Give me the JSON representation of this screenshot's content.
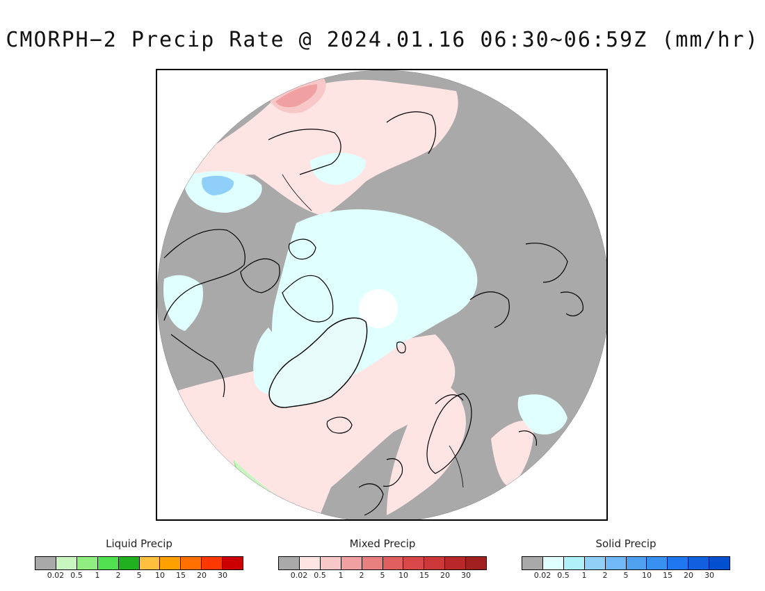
{
  "title": "CMORPH−2 Precip Rate @ 2024.01.16 06:30~06:59Z (mm/hr)",
  "legends": [
    {
      "id": "liquid",
      "title": "Liquid Precip",
      "colors": [
        "#a9a9a9",
        "#c8f5c0",
        "#90ee80",
        "#50e050",
        "#20b020",
        "#ffc040",
        "#ffa000",
        "#ff7000",
        "#ff3800",
        "#cc0000"
      ],
      "ticks": [
        "0.02",
        "0.5",
        "1",
        "2",
        "5",
        "10",
        "15",
        "20",
        "30"
      ]
    },
    {
      "id": "mixed",
      "title": "Mixed Precip",
      "colors": [
        "#a9a9a9",
        "#ffe4e4",
        "#f8c8c8",
        "#f0a0a0",
        "#e88080",
        "#e06060",
        "#d84848",
        "#cc3838",
        "#b82828",
        "#a02020"
      ],
      "ticks": [
        "0.02",
        "0.5",
        "1",
        "2",
        "5",
        "10",
        "15",
        "20",
        "30"
      ]
    },
    {
      "id": "solid",
      "title": "Solid Precip",
      "colors": [
        "#a9a9a9",
        "#e0ffff",
        "#b0f0f8",
        "#90d0f8",
        "#70b8f8",
        "#50a0f0",
        "#3890f0",
        "#2078f0",
        "#1060e0",
        "#0050d0"
      ],
      "ticks": [
        "0.02",
        "0.5",
        "1",
        "2",
        "5",
        "10",
        "15",
        "20",
        "30"
      ]
    }
  ],
  "map": {
    "projection": "north-polar-stereographic",
    "no_precip_color": "#a9a9a9",
    "pole_no_data_color": "#ffffff",
    "coastline_color": "#000000"
  }
}
